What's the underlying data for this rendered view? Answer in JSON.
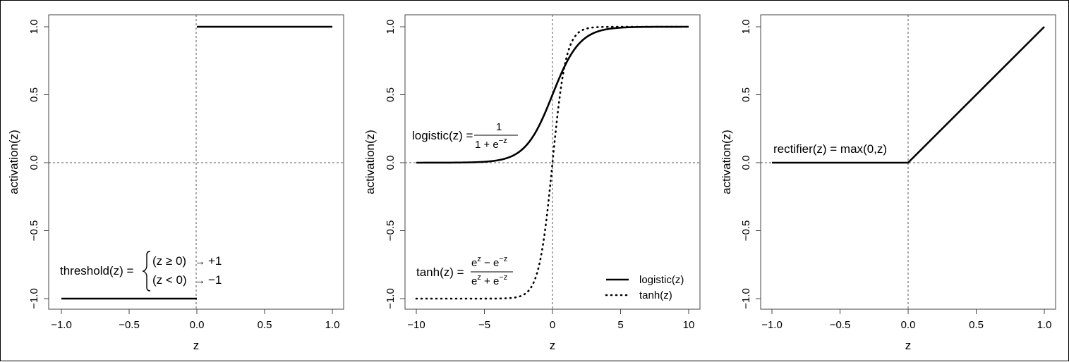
{
  "chart_data": [
    {
      "type": "line",
      "xlabel": "z",
      "ylabel": "activation(z)",
      "xlim": [
        -1.0,
        1.0
      ],
      "ylim": [
        -1.0,
        1.0
      ],
      "xticks": [
        "−1.0",
        "−0.5",
        "0.0",
        "0.5",
        "1.0"
      ],
      "yticks": [
        "−1.0",
        "−0.5",
        "0.0",
        "0.5",
        "1.0"
      ],
      "reference_lines": {
        "x": 0,
        "y": 0,
        "style": "dotted"
      },
      "series": [
        {
          "function": "threshold",
          "style": "solid",
          "x": [
            -1.0,
            0.0,
            0.0,
            1.0
          ],
          "y": [
            -1,
            -1,
            1,
            1
          ]
        }
      ],
      "annotation": {
        "lhs": "threshold(z) =",
        "case1_cond": "(z ≥ 0)",
        "case1_arrow": "→",
        "case1_val": "+1",
        "case2_cond": "(z < 0)",
        "case2_arrow": "→",
        "case2_val": "−1"
      }
    },
    {
      "type": "line",
      "xlabel": "z",
      "ylabel": "activation(z)",
      "xlim": [
        -10,
        10
      ],
      "ylim": [
        -1.0,
        1.0
      ],
      "xticks": [
        "−10",
        "−5",
        "0",
        "5",
        "10"
      ],
      "yticks": [
        "−1.0",
        "−0.5",
        "0.0",
        "0.5",
        "1.0"
      ],
      "reference_lines": {
        "x": 0,
        "y": 0,
        "style": "dotted"
      },
      "series": [
        {
          "name": "logistic(z)",
          "function": "logistic",
          "style": "solid",
          "x_range": [
            -10,
            10
          ]
        },
        {
          "name": "tanh(z)",
          "function": "tanh",
          "style": "dotted",
          "x_range": [
            -10,
            10
          ]
        }
      ],
      "legend": {
        "position": "bottom-right",
        "entries": [
          "logistic(z)",
          "tanh(z)"
        ]
      },
      "annotation_logistic": {
        "lhs": "logistic(z) =",
        "num": "1",
        "den_base": "1 + e",
        "den_exp": "−z"
      },
      "annotation_tanh": {
        "lhs": "tanh(z) =",
        "num_a": "e",
        "num_a_exp": "z",
        "num_op": " − e",
        "num_b_exp": "−z",
        "den_a": "e",
        "den_a_exp": "z",
        "den_op": " + e",
        "den_b_exp": "−z"
      }
    },
    {
      "type": "line",
      "xlabel": "z",
      "ylabel": "activation(z)",
      "xlim": [
        -1.0,
        1.0
      ],
      "ylim": [
        -1.0,
        1.0
      ],
      "xticks": [
        "−1.0",
        "−0.5",
        "0.0",
        "0.5",
        "1.0"
      ],
      "yticks": [
        "−1.0",
        "−0.5",
        "0.0",
        "0.5",
        "1.0"
      ],
      "reference_lines": {
        "x": 0,
        "y": 0,
        "style": "dotted"
      },
      "series": [
        {
          "function": "rectifier",
          "style": "solid",
          "x": [
            -1.0,
            0.0,
            1.0
          ],
          "y": [
            0,
            0,
            1.0
          ]
        }
      ],
      "annotation": {
        "text": "rectifier(z) = max(0,z)"
      }
    }
  ]
}
